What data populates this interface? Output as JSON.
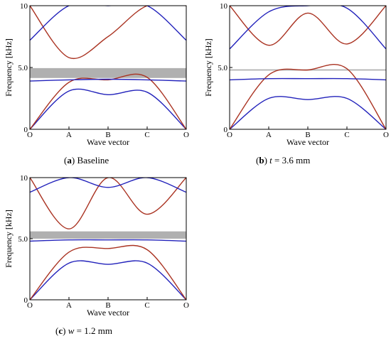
{
  "chart_data": [
    {
      "type": "line",
      "panel": "a",
      "caption": {
        "letter": "a",
        "text": "Baseline",
        "var": "",
        "value": ""
      },
      "xlabel": "Wave vector",
      "ylabel": "Frequency [kHz]",
      "x_ticks": [
        "O",
        "A",
        "B",
        "C",
        "O"
      ],
      "y_ticks": [
        "0",
        "5.0",
        "10"
      ],
      "ylim": [
        0,
        10
      ],
      "x": [
        0,
        1,
        2,
        3,
        4
      ],
      "band_gap": [
        4.15,
        4.95
      ],
      "series": [
        {
          "color": "#2222bb",
          "values": [
            0,
            3.1,
            2.8,
            3.0,
            0
          ]
        },
        {
          "color": "#aa3322",
          "values": [
            0,
            3.8,
            4.0,
            4.2,
            0
          ]
        },
        {
          "color": "#2222bb",
          "values": [
            3.9,
            4.0,
            4.05,
            4.0,
            3.9
          ]
        },
        {
          "color": "#aa3322",
          "values": [
            10,
            5.8,
            7.5,
            10,
            10
          ]
        },
        {
          "color": "#2222bb",
          "values": [
            7.2,
            10,
            10,
            10,
            7.2
          ]
        }
      ]
    },
    {
      "type": "line",
      "panel": "b",
      "caption": {
        "letter": "b",
        "text": "",
        "var": "t",
        "value": "= 3.6 mm"
      },
      "xlabel": "Wave vector",
      "ylabel": "Frequency [kHz]",
      "x_ticks": [
        "O",
        "A",
        "B",
        "C",
        "O"
      ],
      "y_ticks": [
        "0",
        "5.0",
        "10"
      ],
      "ylim": [
        0,
        10
      ],
      "x": [
        0,
        1,
        2,
        3,
        4
      ],
      "band_gap": [
        4.75,
        4.85
      ],
      "series": [
        {
          "color": "#2222bb",
          "values": [
            0,
            2.5,
            2.4,
            2.5,
            0
          ]
        },
        {
          "color": "#aa3322",
          "values": [
            0,
            4.4,
            4.8,
            4.9,
            0
          ]
        },
        {
          "color": "#2222bb",
          "values": [
            4.0,
            4.1,
            4.1,
            4.1,
            4.0
          ]
        },
        {
          "color": "#aa3322",
          "values": [
            10,
            6.8,
            9.4,
            6.9,
            10
          ]
        },
        {
          "color": "#2222bb",
          "values": [
            6.5,
            9.5,
            10,
            9.8,
            6.5
          ]
        }
      ]
    },
    {
      "type": "line",
      "panel": "c",
      "caption": {
        "letter": "c",
        "text": "",
        "var": "w",
        "value": "= 1.2 mm"
      },
      "xlabel": "Wave vector",
      "ylabel": "Frequency [kHz]",
      "x_ticks": [
        "O",
        "A",
        "B",
        "C",
        "O"
      ],
      "y_ticks": [
        "0",
        "5.0",
        "10"
      ],
      "ylim": [
        0,
        10
      ],
      "x": [
        0,
        1,
        2,
        3,
        4
      ],
      "band_gap": [
        5.0,
        5.6
      ],
      "series": [
        {
          "color": "#2222bb",
          "values": [
            0,
            3.0,
            2.9,
            3.0,
            0
          ]
        },
        {
          "color": "#aa3322",
          "values": [
            0,
            3.9,
            4.2,
            4.1,
            0
          ]
        },
        {
          "color": "#2222bb",
          "values": [
            4.8,
            4.9,
            4.9,
            4.9,
            4.8
          ]
        },
        {
          "color": "#aa3322",
          "values": [
            10,
            5.8,
            10,
            7.0,
            10
          ]
        },
        {
          "color": "#2222bb",
          "values": [
            8.8,
            10,
            9.2,
            10,
            8.8
          ]
        }
      ]
    }
  ]
}
